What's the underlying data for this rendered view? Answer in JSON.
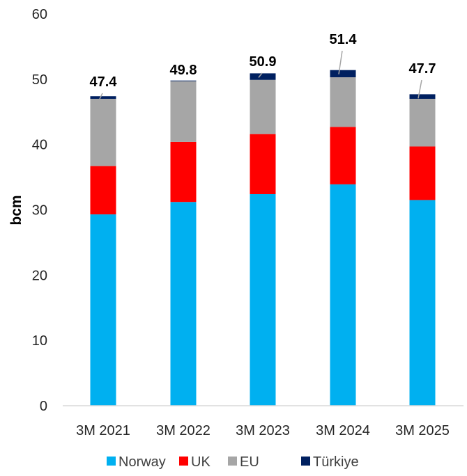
{
  "chart_data": {
    "type": "bar",
    "stacked": true,
    "title": "",
    "xlabel": "",
    "ylabel": "bcm",
    "ylim": [
      0,
      60
    ],
    "yticks": [
      0,
      10,
      20,
      30,
      40,
      50,
      60
    ],
    "grid": false,
    "legend_position": "bottom",
    "categories": [
      "3M 2021",
      "3M 2022",
      "3M 2023",
      "3M 2024",
      "3M 2025"
    ],
    "series": [
      {
        "name": "Norway",
        "color": "#00B0F0",
        "values": [
          29.3,
          31.2,
          32.4,
          33.9,
          31.5
        ]
      },
      {
        "name": "UK",
        "color": "#FF0000",
        "values": [
          7.4,
          9.2,
          9.2,
          8.8,
          8.2
        ]
      },
      {
        "name": "EU",
        "color": "#A6A6A6",
        "values": [
          10.3,
          9.3,
          8.3,
          7.6,
          7.3
        ]
      },
      {
        "name": "Türkiye",
        "color": "#002060",
        "values": [
          0.4,
          0.1,
          1.0,
          1.1,
          0.7
        ]
      }
    ],
    "totals": [
      47.4,
      49.8,
      50.9,
      51.4,
      47.7
    ],
    "total_labels": [
      "47.4",
      "49.8",
      "50.9",
      "51.4",
      "47.7"
    ]
  }
}
